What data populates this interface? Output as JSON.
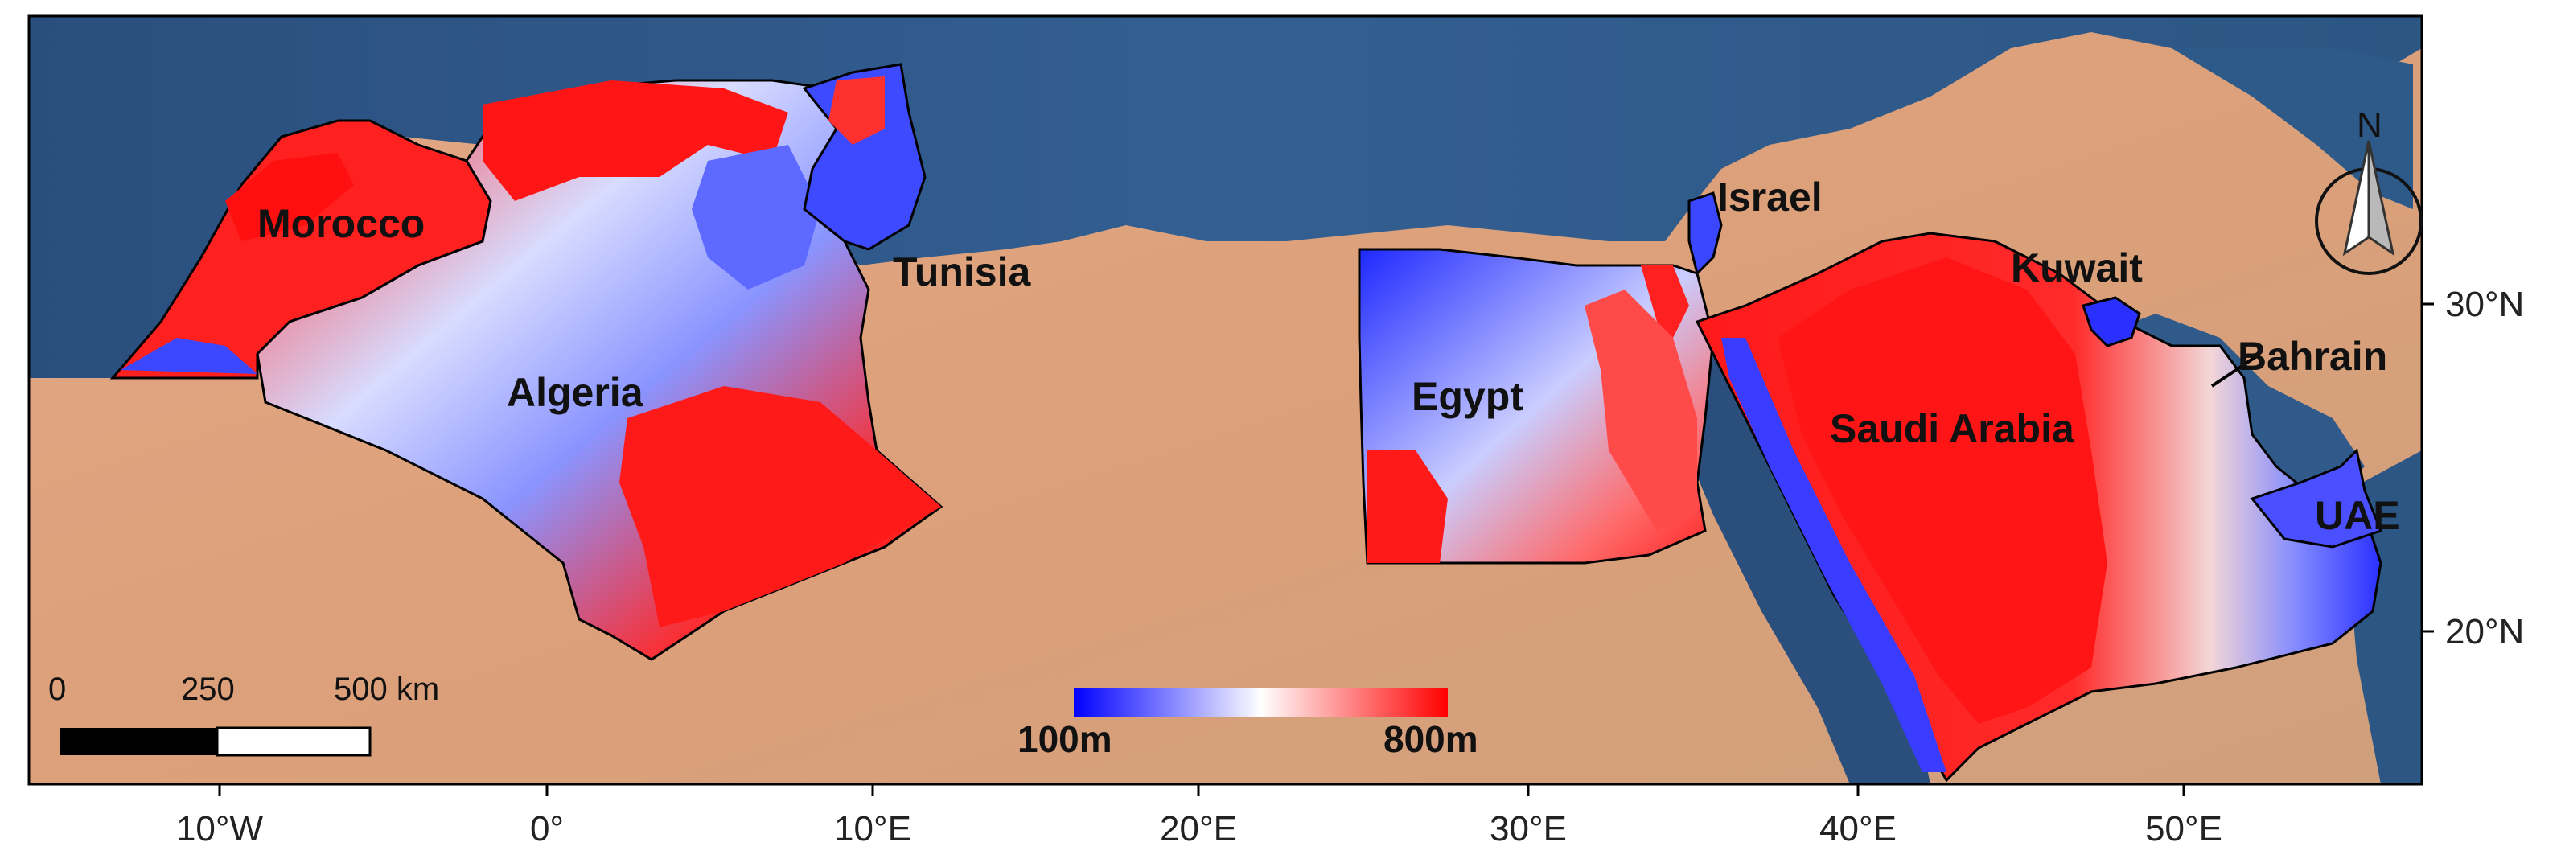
{
  "map": {
    "country_labels": {
      "morocco": "Morocco",
      "algeria": "Algeria",
      "tunisia": "Tunisia",
      "egypt": "Egypt",
      "israel": "Israel",
      "kuwait": "Kuwait",
      "saudi_arabia": "Saudi Arabia",
      "bahrain": "Bahrain",
      "uae": "UAE"
    },
    "longitude_ticks": [
      "10°W",
      "0°",
      "10°E",
      "20°E",
      "30°E",
      "40°E",
      "50°E"
    ],
    "latitude_ticks": [
      "30°N",
      "20°N"
    ],
    "scale_bar": {
      "labels": [
        "0",
        "250",
        "500 km"
      ]
    },
    "colorbar": {
      "min_label": "100m",
      "max_label": "800m",
      "colors": {
        "low": "#0000ff",
        "mid": "#ffffff",
        "high": "#ff0000"
      }
    },
    "north_arrow": {
      "label": "N"
    },
    "colors": {
      "sea": "#2e5d8f",
      "land": "#d9a27a",
      "border": "#000000"
    }
  }
}
